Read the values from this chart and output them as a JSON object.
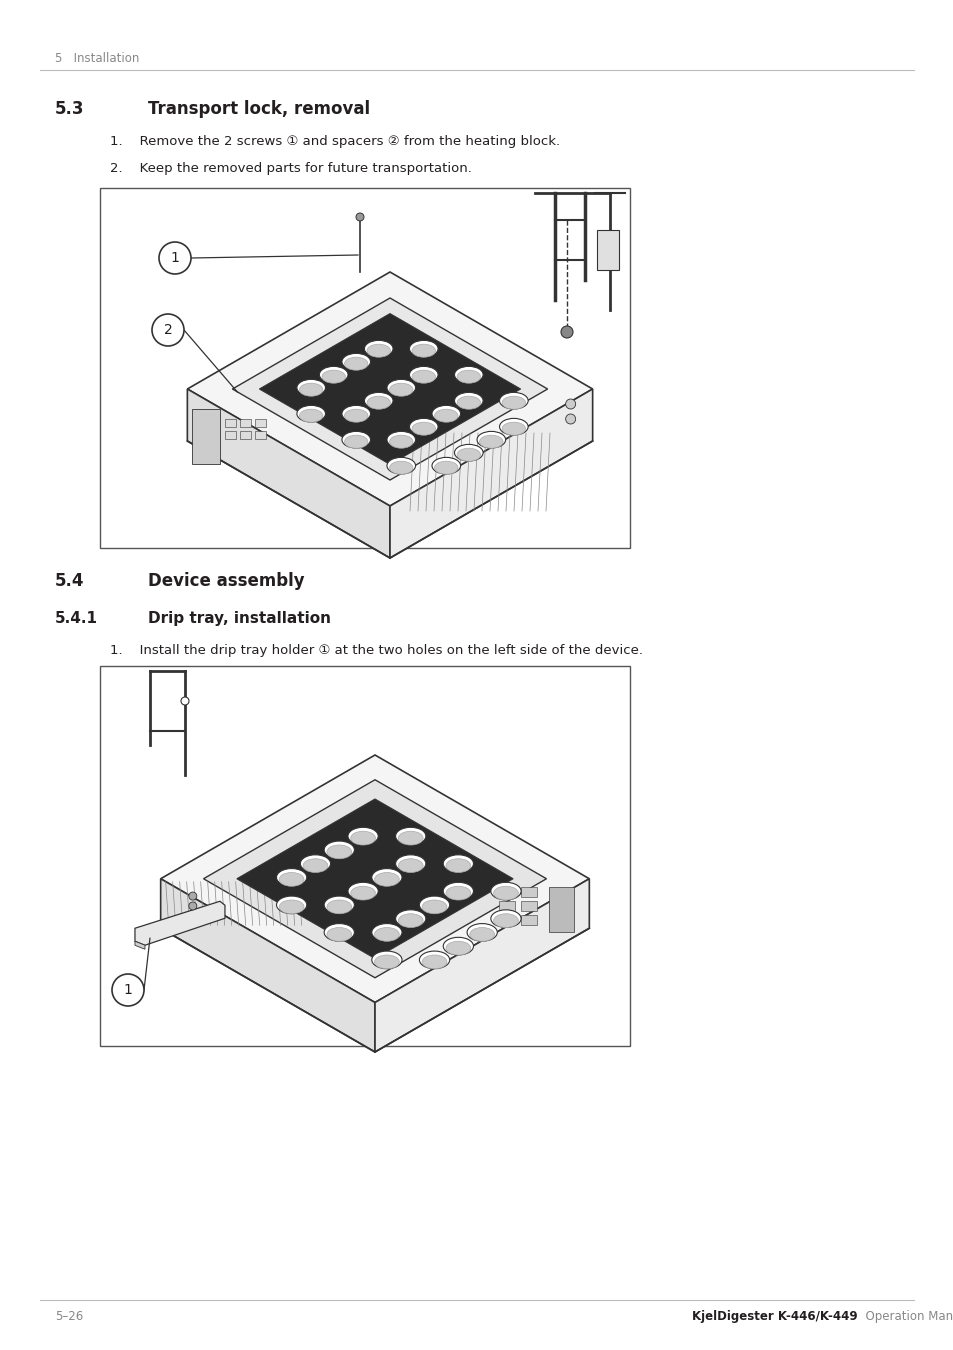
{
  "page_bg": "#ffffff",
  "header_text": "5   Installation",
  "footer_left": "5–26",
  "footer_right_bold": "KjelDigester K-446/K-449",
  "footer_right_normal": "  Operation Manual",
  "section_53_label": "5.3",
  "section_53_title": "Transport lock, removal",
  "section_53_item1": "1.    Remove the 2 screws ① and spacers ② from the heating block.",
  "section_53_item2": "2.    Keep the removed parts for future transportation.",
  "section_54_label": "5.4",
  "section_54_title": "Device assembly",
  "section_541_label": "5.4.1",
  "section_541_title": "Drip tray, installation",
  "section_541_item1": "1.    Install the drip tray holder ① at the two holes on the left side of the device.",
  "text_color": "#231f20",
  "gray_text": "#888888",
  "line_color": "#bbbbbb",
  "draw_color": "#333333"
}
